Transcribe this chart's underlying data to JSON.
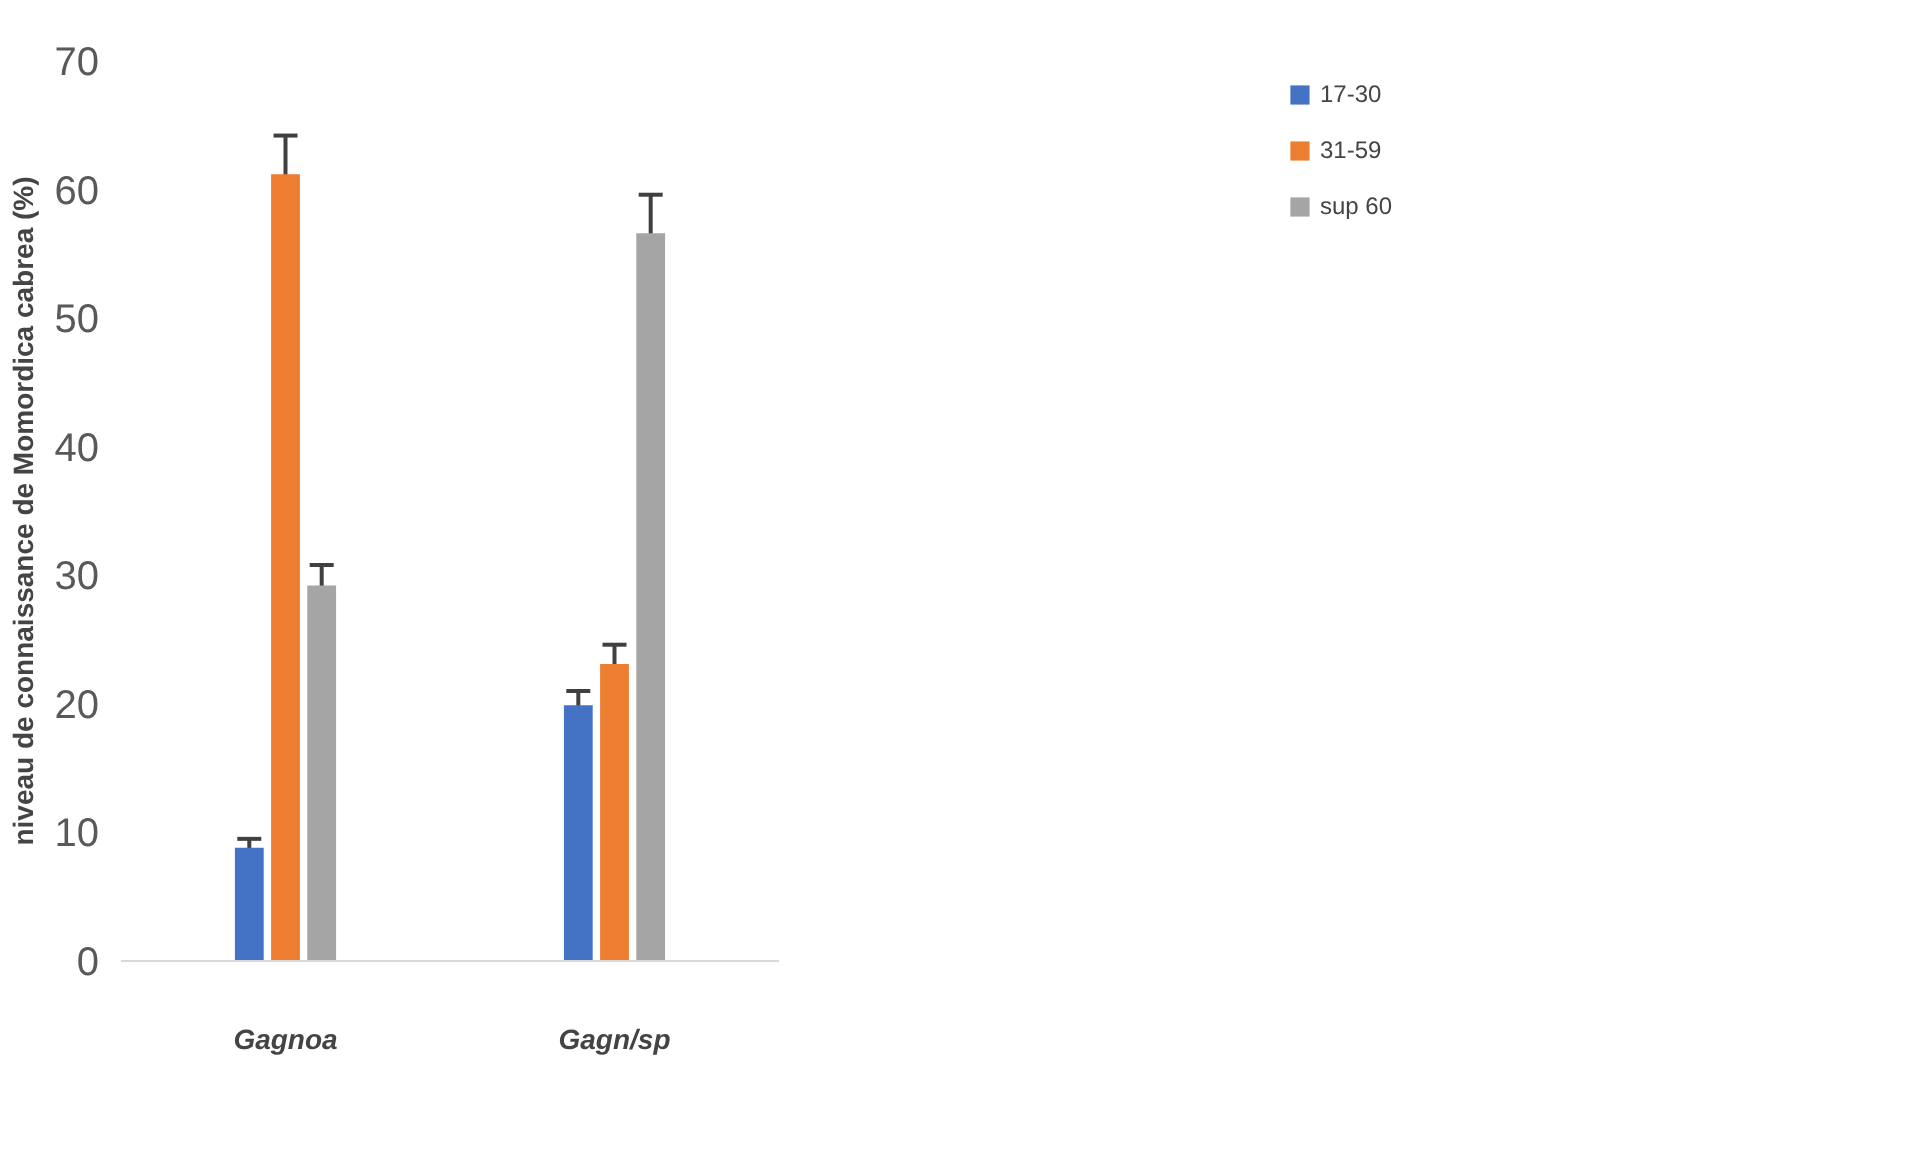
{
  "chart_data": {
    "type": "bar",
    "ylabel": "niveau de connaissance de Momordica cabrea (%)",
    "categories": [
      "Gagnoa",
      "Gagn/sp"
    ],
    "series": [
      {
        "name": "17-30",
        "color": "#4472c4",
        "values": [
          8.8,
          19.9
        ],
        "errors": [
          0.7,
          1.1
        ]
      },
      {
        "name": "31-59",
        "color": "#ed7d31",
        "values": [
          61.2,
          23.1
        ],
        "errors": [
          3.0,
          1.5
        ]
      },
      {
        "name": "sup 60",
        "color": "#a5a5a5",
        "values": [
          29.2,
          56.6
        ],
        "errors": [
          1.6,
          3.0
        ]
      }
    ],
    "ylim": [
      0,
      70
    ],
    "yticks": [
      0,
      10,
      20,
      30,
      40,
      50,
      60,
      70
    ],
    "grid": false,
    "legend": "top right"
  }
}
